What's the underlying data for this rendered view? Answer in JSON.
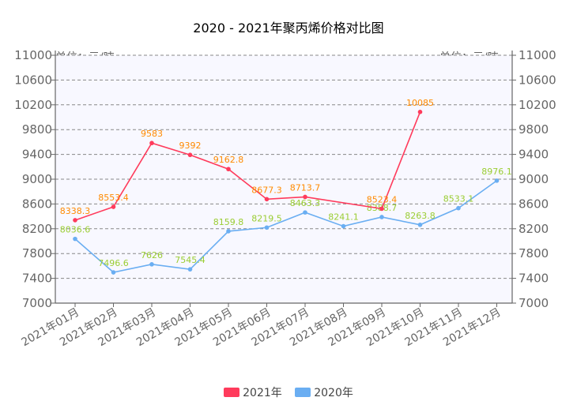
{
  "chart_data": {
    "type": "line",
    "title": "2020 - 2021年聚丙烯价格对比图",
    "unit_left": "单位：元/吨",
    "unit_right": "单位：元/吨",
    "categories": [
      "2021年01月",
      "2021年02月",
      "2021年03月",
      "2021年04月",
      "2021年05月",
      "2021年06月",
      "2021年07月",
      "2021年08月",
      "2021年09月",
      "2021年10月",
      "2021年11月",
      "2021年12月"
    ],
    "ylim": [
      7000,
      11000
    ],
    "yticks": [
      7000,
      7400,
      7800,
      8200,
      8600,
      9000,
      9400,
      9800,
      10200,
      10600,
      11000
    ],
    "grid": true,
    "series": [
      {
        "name": "2021年",
        "color": "#ff3b5c",
        "label_color": "#ff8a00",
        "values": [
          8338.3,
          8553.4,
          9583,
          9392,
          9162.8,
          8677.3,
          8713.7,
          null,
          8523.4,
          10085,
          null,
          null
        ],
        "labels": [
          "8338.3",
          "8553.4",
          "9583",
          "9392",
          "9162.8",
          "8677.3",
          "8713.7",
          "",
          "8523.4",
          "10085",
          "",
          ""
        ]
      },
      {
        "name": "2020年",
        "color": "#6aaef2",
        "label_color": "#9acd32",
        "values": [
          8036.6,
          7496.6,
          7626,
          7545.4,
          8159.8,
          8219.5,
          8463.3,
          8241.1,
          8388.7,
          8263.8,
          8533.1,
          8976.1
        ],
        "labels": [
          "8036.6",
          "7496.6",
          "7626",
          "7545.4",
          "8159.8",
          "8219.5",
          "8463.3",
          "8241.1",
          "8388.7",
          "8263.8",
          "8533.1",
          "8976.1"
        ]
      }
    ],
    "legend_position": "bottom"
  }
}
